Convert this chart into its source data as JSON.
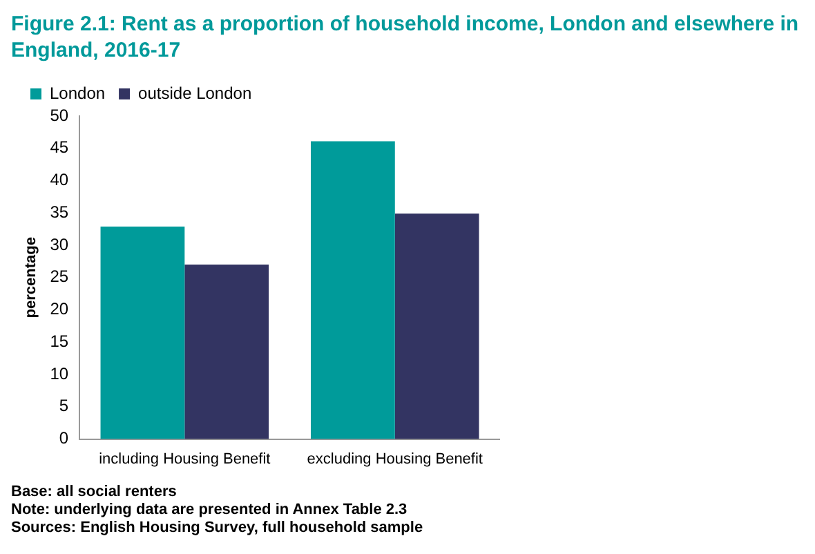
{
  "chart_data": {
    "type": "bar",
    "title": "Figure 2.1: Rent as a proportion of household income, London and elsewhere in England, 2016-17",
    "categories": [
      "including Housing Benefit",
      "excluding Housing Benefit"
    ],
    "series": [
      {
        "name": "London",
        "color": "#009b9a",
        "values": [
          32.9,
          46.1
        ]
      },
      {
        "name": "outside London",
        "color": "#333462",
        "values": [
          27,
          34.9
        ]
      }
    ],
    "ylabel": "percentage",
    "ylim": [
      0,
      50
    ],
    "yticks": [
      0,
      5,
      10,
      15,
      20,
      25,
      30,
      35,
      40,
      45,
      50
    ],
    "grid": false,
    "legend": "top left",
    "annotations": [
      "Base: all social renters",
      "Note: underlying data are presented in Annex Table 2.3",
      "Sources: English Housing Survey, full household sample"
    ]
  }
}
